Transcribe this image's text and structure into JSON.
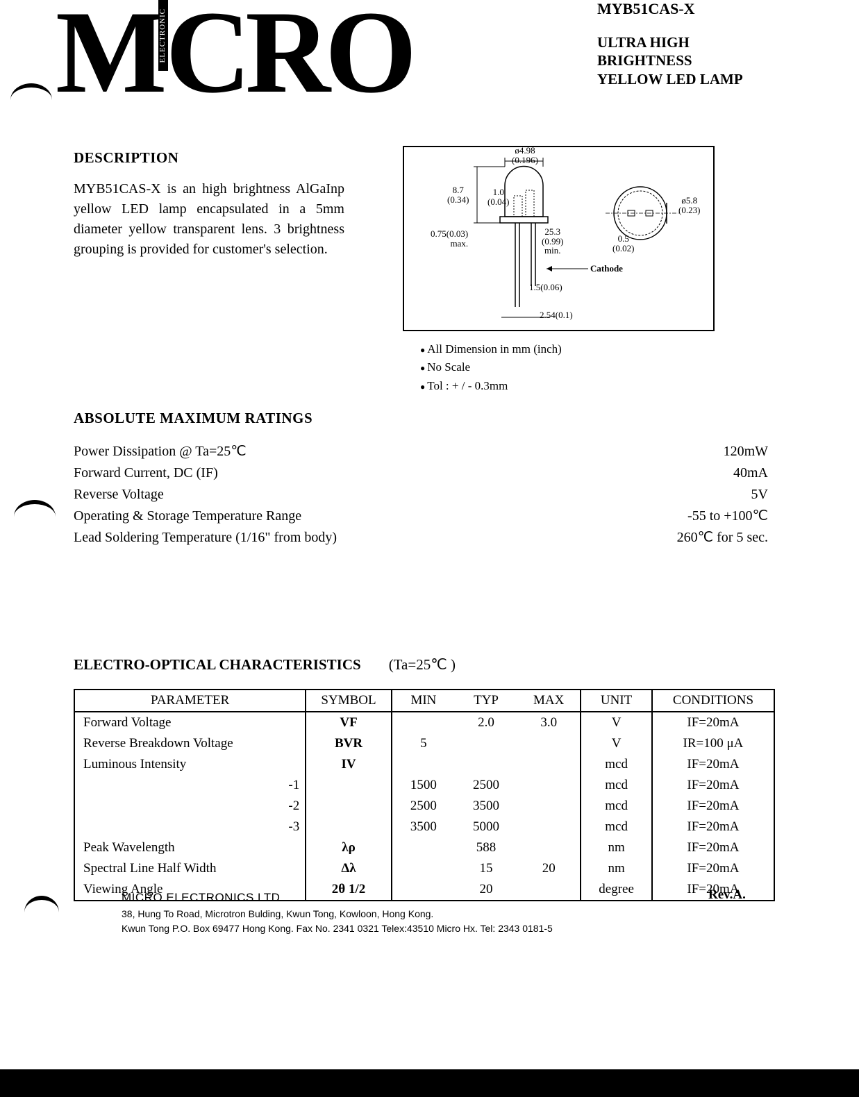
{
  "header": {
    "part_number": "MYB51CAS-X",
    "title_line1": "ULTRA HIGH",
    "title_line2": "BRIGHTNESS",
    "title_line3": "YELLOW LED LAMP",
    "logo_text": "MICRO",
    "logo_vertical": "ELECTRONIC"
  },
  "description": {
    "heading": "DESCRIPTION",
    "text": "MYB51CAS-X is an high brightness AlGaInp yellow LED lamp encapsulated in a 5mm diameter yellow transparent lens.  3 brightness grouping is provided for customer's selection."
  },
  "diagram": {
    "dims": {
      "d498": "ø4.98",
      "d498_in": "(0.196)",
      "h87": "8.7",
      "h87_in": "(0.34)",
      "w10": "1.0",
      "w10_in": "(0.04)",
      "d58": "ø5.8",
      "d58_in": "(0.23)",
      "sq075": "0.75(0.03)",
      "sq075_sub": "max.",
      "lead253": "25.3",
      "lead253_in": "(0.99)",
      "lead253_sub": "min.",
      "flat05": "0.5",
      "flat05_in": "(0.02)",
      "cathode": "Cathode",
      "base15": "1.5(0.06)",
      "pitch254": "2.54(0.1)"
    },
    "notes": {
      "n1": "All Dimension in mm (inch)",
      "n2": "No Scale",
      "n3": "Tol :  + / -  0.3mm"
    }
  },
  "amr": {
    "heading": "ABSOLUTE  MAXIMUM  RATINGS",
    "rows": [
      {
        "label": "Power Dissipation @ Ta=25℃",
        "value": "120mW"
      },
      {
        "label": "Forward Current, DC (IF)",
        "value": "40mA"
      },
      {
        "label": "Reverse Voltage",
        "value": "5V"
      },
      {
        "label": "Operating & Storage Temperature Range",
        "value": "-55 to +100℃"
      },
      {
        "label": "Lead Soldering Temperature (1/16\" from body)",
        "value": "260℃ for 5 sec."
      }
    ]
  },
  "eoc": {
    "heading": "ELECTRO-OPTICAL  CHARACTERISTICS",
    "condition": "(Ta=25℃    )",
    "columns": [
      "PARAMETER",
      "SYMBOL",
      "MIN",
      "TYP",
      "MAX",
      "UNIT",
      "CONDITIONS"
    ],
    "rows": [
      {
        "param": "Forward Voltage",
        "sym": "VF",
        "min": "",
        "typ": "2.0",
        "max": "3.0",
        "unit": "V",
        "cond": "IF=20mA"
      },
      {
        "param": "Reverse Breakdown Voltage",
        "sym": "BVR",
        "min": "5",
        "typ": "",
        "max": "",
        "unit": "V",
        "cond": "IR=100 μA"
      },
      {
        "param": "Luminous Intensity",
        "sym": "IV",
        "min": "",
        "typ": "",
        "max": "",
        "unit": "mcd",
        "cond": "IF=20mA"
      },
      {
        "param": "-1",
        "sym": "",
        "min": "1500",
        "typ": "2500",
        "max": "",
        "unit": "mcd",
        "cond": "IF=20mA",
        "right": true
      },
      {
        "param": "-2",
        "sym": "",
        "min": "2500",
        "typ": "3500",
        "max": "",
        "unit": "mcd",
        "cond": "IF=20mA",
        "right": true
      },
      {
        "param": "-3",
        "sym": "",
        "min": "3500",
        "typ": "5000",
        "max": "",
        "unit": "mcd",
        "cond": "IF=20mA",
        "right": true
      },
      {
        "param": "Peak Wavelength",
        "sym": "λρ",
        "min": "",
        "typ": "588",
        "max": "",
        "unit": "nm",
        "cond": "IF=20mA"
      },
      {
        "param": "Spectral Line Half Width",
        "sym": "Δλ",
        "min": "",
        "typ": "15",
        "max": "20",
        "unit": "nm",
        "cond": "IF=20mA"
      },
      {
        "param": "Viewing Angle",
        "sym": "2θ 1/2",
        "min": "",
        "typ": "20",
        "max": "",
        "unit": "degree",
        "cond": "IF=20mA"
      }
    ]
  },
  "footer": {
    "company": "MICRO ELECTRONICS LTD.",
    "addr1": "38, Hung To Road, Microtron Bulding, Kwun Tong, Kowloon, Hong Kong.",
    "addr2": "Kwun Tong P.O. Box 69477 Hong Kong. Fax No. 2341 0321   Telex:43510 Micro Hx.   Tel: 2343 0181-5",
    "rev": "Rev.A."
  },
  "style": {
    "page_bg": "#ffffff",
    "text_color": "#000000",
    "border_color": "#000000",
    "body_fontsize": 20,
    "heading_fontsize": 21,
    "table_fontsize": 19,
    "footer_fontsize": 14
  }
}
